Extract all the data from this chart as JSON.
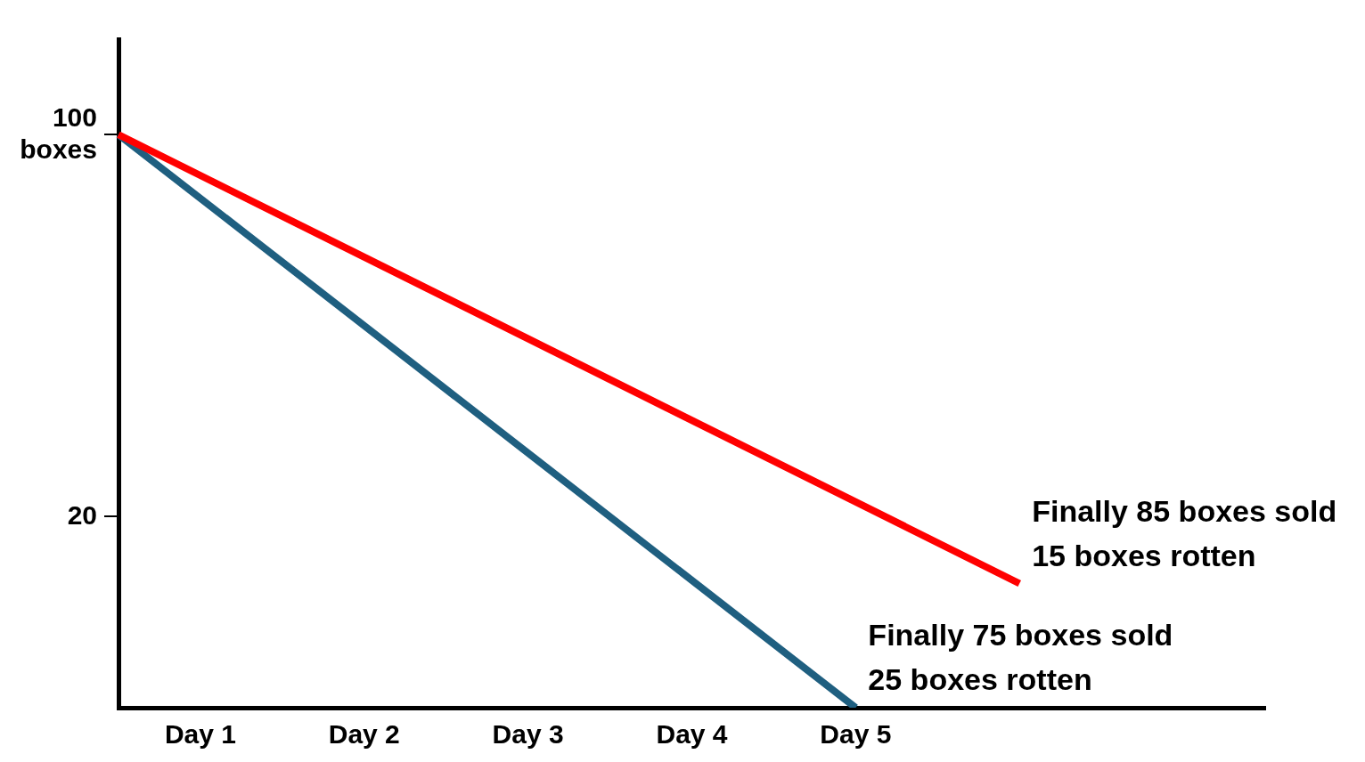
{
  "chart_data": {
    "type": "line",
    "categories": [
      null,
      "Day 1",
      null,
      "Day 2",
      null,
      "Day 3",
      null,
      "Day 4",
      null,
      "Day 5",
      null,
      null,
      null,
      null,
      null
    ],
    "ylim": [
      -20,
      120
    ],
    "yticks": [
      {
        "value": 20,
        "label": "20"
      },
      {
        "value": 100,
        "label": "100 boxes"
      }
    ],
    "grid": false,
    "legend": false,
    "marker": "none",
    "line_style": "solid",
    "series": [
      {
        "color": "#ff0000",
        "values": [
          100,
          null,
          null,
          null,
          null,
          null,
          null,
          null,
          null,
          null,
          null,
          6,
          null,
          null,
          null
        ]
      },
      {
        "color": "#1f5f80",
        "values": [
          100,
          null,
          null,
          null,
          null,
          null,
          null,
          null,
          null,
          -20,
          null,
          null,
          null,
          null,
          null
        ]
      }
    ],
    "annotations": [
      "Finally 85 boxes sold\n15 boxes rotten",
      "Finally 75 boxes sold\n25 boxes rotten"
    ]
  }
}
